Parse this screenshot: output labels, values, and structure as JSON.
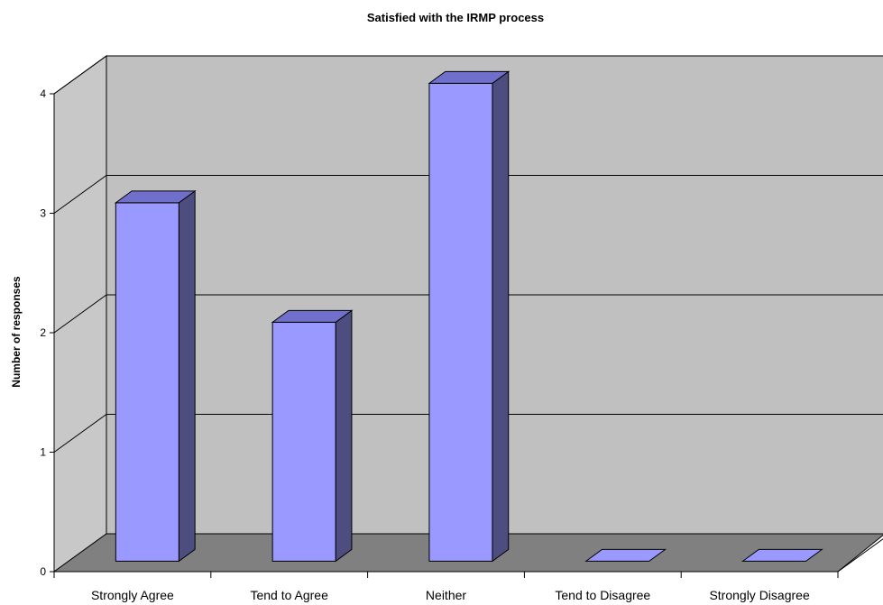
{
  "chart_data": {
    "type": "bar",
    "title": "Satisfied with the IRMP process",
    "xlabel": "",
    "ylabel": "Number of responses",
    "categories": [
      "Strongly Agree",
      "Tend to Agree",
      "Neither",
      "Tend to Disagree",
      "Strongly Disagree"
    ],
    "values": [
      3,
      2,
      4,
      0,
      0
    ],
    "ylim": [
      0,
      4
    ],
    "yticks": [
      "0",
      "1",
      "2",
      "3",
      "4"
    ],
    "grid": true,
    "legend": "none",
    "three_d": true,
    "colors": {
      "bar_front": "#9999ff",
      "bar_top": "#7070cc",
      "bar_side": "#4d4d80",
      "back_wall": "#c0c0c0",
      "side_wall": "#c8c8c8",
      "floor": "#808080",
      "stroke": "#000000"
    }
  }
}
